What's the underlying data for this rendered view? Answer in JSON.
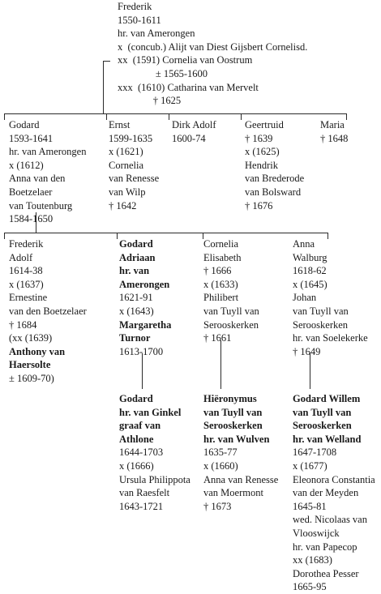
{
  "root": {
    "lines": [
      {
        "text": "Frederik",
        "bold": false
      },
      {
        "text": "1550-1611",
        "bold": false
      },
      {
        "text": "hr. van Amerongen",
        "bold": false
      },
      {
        "text": "x  (concub.) Alijt van Diest Gijsbert Cornelisd.",
        "bold": false
      },
      {
        "text": "xx  (1591) Cornelia van Oostrum",
        "bold": false
      },
      {
        "text": "               ± 1565-1600",
        "bold": false
      },
      {
        "text": "xxx  (1610) Catharina van Mervelt",
        "bold": false
      },
      {
        "text": "              † 1625",
        "bold": false
      }
    ]
  },
  "gen2": [
    {
      "name": "godard-1593",
      "lines": [
        {
          "text": "Godard",
          "bold": false
        },
        {
          "text": "1593-1641",
          "bold": false
        },
        {
          "text": "hr. van Amerongen",
          "bold": false
        },
        {
          "text": "x (1612)",
          "bold": false
        },
        {
          "text": "Anna van den",
          "bold": false
        },
        {
          "text": "Boetzelaer",
          "bold": false
        },
        {
          "text": "van Toutenburg",
          "bold": false
        },
        {
          "text": "1584-1650",
          "bold": false
        }
      ]
    },
    {
      "name": "ernst",
      "lines": [
        {
          "text": "Ernst",
          "bold": false
        },
        {
          "text": "1599-1635",
          "bold": false
        },
        {
          "text": "x (1621)",
          "bold": false
        },
        {
          "text": "Cornelia",
          "bold": false
        },
        {
          "text": "van Renesse",
          "bold": false
        },
        {
          "text": "van Wilp",
          "bold": false
        },
        {
          "text": "† 1642",
          "bold": false
        }
      ]
    },
    {
      "name": "dirk-adolf",
      "lines": [
        {
          "text": "Dirk Adolf",
          "bold": false
        },
        {
          "text": "1600-74",
          "bold": false
        }
      ]
    },
    {
      "name": "geertruid",
      "lines": [
        {
          "text": "Geertruid",
          "bold": false
        },
        {
          "text": "† 1639",
          "bold": false
        },
        {
          "text": "x (1625)",
          "bold": false
        },
        {
          "text": "Hendrik",
          "bold": false
        },
        {
          "text": "van Brederode",
          "bold": false
        },
        {
          "text": "van Bolsward",
          "bold": false
        },
        {
          "text": "† 1676",
          "bold": false
        }
      ]
    },
    {
      "name": "maria",
      "lines": [
        {
          "text": "Maria",
          "bold": false
        },
        {
          "text": "† 1648",
          "bold": false
        }
      ]
    }
  ],
  "gen3": [
    {
      "name": "frederik-adolf",
      "lines": [
        {
          "text": "Frederik",
          "bold": false
        },
        {
          "text": "Adolf",
          "bold": false
        },
        {
          "text": "1614-38",
          "bold": false
        },
        {
          "text": "x (1637)",
          "bold": false
        },
        {
          "text": "Ernestine",
          "bold": false
        },
        {
          "text": "van den Boetzelaer",
          "bold": false
        },
        {
          "text": "† 1684",
          "bold": false
        },
        {
          "text": "(xx (1639)",
          "bold": false
        },
        {
          "text": "Anthony van",
          "bold": true
        },
        {
          "text": "Haersolte",
          "bold": true
        },
        {
          "text": "± 1609-70)",
          "bold": false
        }
      ]
    },
    {
      "name": "godard-adriaan",
      "lines": [
        {
          "text": "Godard",
          "bold": true
        },
        {
          "text": "Adriaan",
          "bold": true
        },
        {
          "text": "hr. van",
          "bold": true
        },
        {
          "text": "Amerongen",
          "bold": true
        },
        {
          "text": "1621-91",
          "bold": false
        },
        {
          "text": "x (1643)",
          "bold": false
        },
        {
          "text": "Margaretha",
          "bold": true
        },
        {
          "text": "Turnor",
          "bold": true
        },
        {
          "text": "1613-1700",
          "bold": false
        }
      ]
    },
    {
      "name": "cornelia-elisabeth",
      "lines": [
        {
          "text": "Cornelia",
          "bold": false
        },
        {
          "text": "Elisabeth",
          "bold": false
        },
        {
          "text": "† 1666",
          "bold": false
        },
        {
          "text": "x (1633)",
          "bold": false
        },
        {
          "text": "Philibert",
          "bold": false
        },
        {
          "text": "van Tuyll van",
          "bold": false
        },
        {
          "text": "Serooskerken",
          "bold": false
        },
        {
          "text": "† 1661",
          "bold": false
        }
      ]
    },
    {
      "name": "anna-walburg",
      "lines": [
        {
          "text": "Anna",
          "bold": false
        },
        {
          "text": "Walburg",
          "bold": false
        },
        {
          "text": "1618-62",
          "bold": false
        },
        {
          "text": "x (1645)",
          "bold": false
        },
        {
          "text": "Johan",
          "bold": false
        },
        {
          "text": "van Tuyll van",
          "bold": false
        },
        {
          "text": "Serooskerken",
          "bold": false
        },
        {
          "text": "hr. van Soelekerke",
          "bold": false
        },
        {
          "text": "† 1649",
          "bold": false
        }
      ]
    }
  ],
  "gen4": [
    {
      "name": "godard-ginkel",
      "lines": [
        {
          "text": "Godard",
          "bold": true
        },
        {
          "text": "hr. van Ginkel",
          "bold": true
        },
        {
          "text": "graaf van",
          "bold": true
        },
        {
          "text": "Athlone",
          "bold": true
        },
        {
          "text": "1644-1703",
          "bold": false
        },
        {
          "text": "x (1666)",
          "bold": false
        },
        {
          "text": "Ursula Philippota",
          "bold": false
        },
        {
          "text": "van Raesfelt",
          "bold": false
        },
        {
          "text": "1643-1721",
          "bold": false
        }
      ]
    },
    {
      "name": "hieronymus",
      "lines": [
        {
          "text": "Hiëronymus",
          "bold": true
        },
        {
          "text": "van Tuyll van",
          "bold": true
        },
        {
          "text": "Serooskerken",
          "bold": true
        },
        {
          "text": "hr. van Wulven",
          "bold": true
        },
        {
          "text": "1635-77",
          "bold": false
        },
        {
          "text": "x (1660)",
          "bold": false
        },
        {
          "text": "Anna van Renesse",
          "bold": false
        },
        {
          "text": "van Moermont",
          "bold": false
        },
        {
          "text": "† 1673",
          "bold": false
        }
      ]
    },
    {
      "name": "godard-willem",
      "lines": [
        {
          "text": "Godard Willem",
          "bold": true
        },
        {
          "text": "van Tuyll van",
          "bold": true
        },
        {
          "text": "Serooskerken",
          "bold": true
        },
        {
          "text": "hr. van Welland",
          "bold": true
        },
        {
          "text": "1647-1708",
          "bold": false
        },
        {
          "text": "x (1677)",
          "bold": false
        },
        {
          "text": "Eleonora Constantia",
          "bold": false
        },
        {
          "text": "van der Meyden",
          "bold": false
        },
        {
          "text": "1645-81",
          "bold": false
        },
        {
          "text": "wed. Nicolaas van",
          "bold": false
        },
        {
          "text": "Vlooswijck",
          "bold": false
        },
        {
          "text": "hr. van Papecop",
          "bold": false
        },
        {
          "text": "xx (1683)",
          "bold": false
        },
        {
          "text": "Dorothea Pesser",
          "bold": false
        },
        {
          "text": "1665-95",
          "bold": false
        }
      ]
    }
  ]
}
